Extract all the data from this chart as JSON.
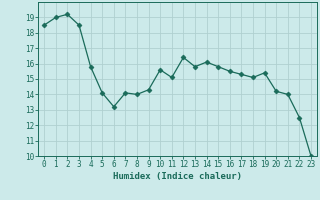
{
  "x": [
    0,
    1,
    2,
    3,
    4,
    5,
    6,
    7,
    8,
    9,
    10,
    11,
    12,
    13,
    14,
    15,
    16,
    17,
    18,
    19,
    20,
    21,
    22,
    23
  ],
  "y": [
    18.5,
    19.0,
    19.2,
    18.5,
    15.8,
    14.1,
    13.2,
    14.1,
    14.0,
    14.3,
    15.6,
    15.1,
    16.4,
    15.8,
    16.1,
    15.8,
    15.5,
    15.3,
    15.1,
    15.4,
    14.2,
    14.0,
    12.5,
    10.0
  ],
  "line_color": "#1a6b5a",
  "marker": "D",
  "marker_size": 2.5,
  "background_color": "#cceaea",
  "grid_color": "#b0d0d0",
  "xlabel": "Humidex (Indice chaleur)",
  "ylim": [
    10,
    20
  ],
  "xlim": [
    -0.5,
    23.5
  ],
  "yticks": [
    10,
    11,
    12,
    13,
    14,
    15,
    16,
    17,
    18,
    19
  ],
  "xticks": [
    0,
    1,
    2,
    3,
    4,
    5,
    6,
    7,
    8,
    9,
    10,
    11,
    12,
    13,
    14,
    15,
    16,
    17,
    18,
    19,
    20,
    21,
    22,
    23
  ],
  "tick_fontsize": 5.5,
  "label_fontsize": 6.5
}
